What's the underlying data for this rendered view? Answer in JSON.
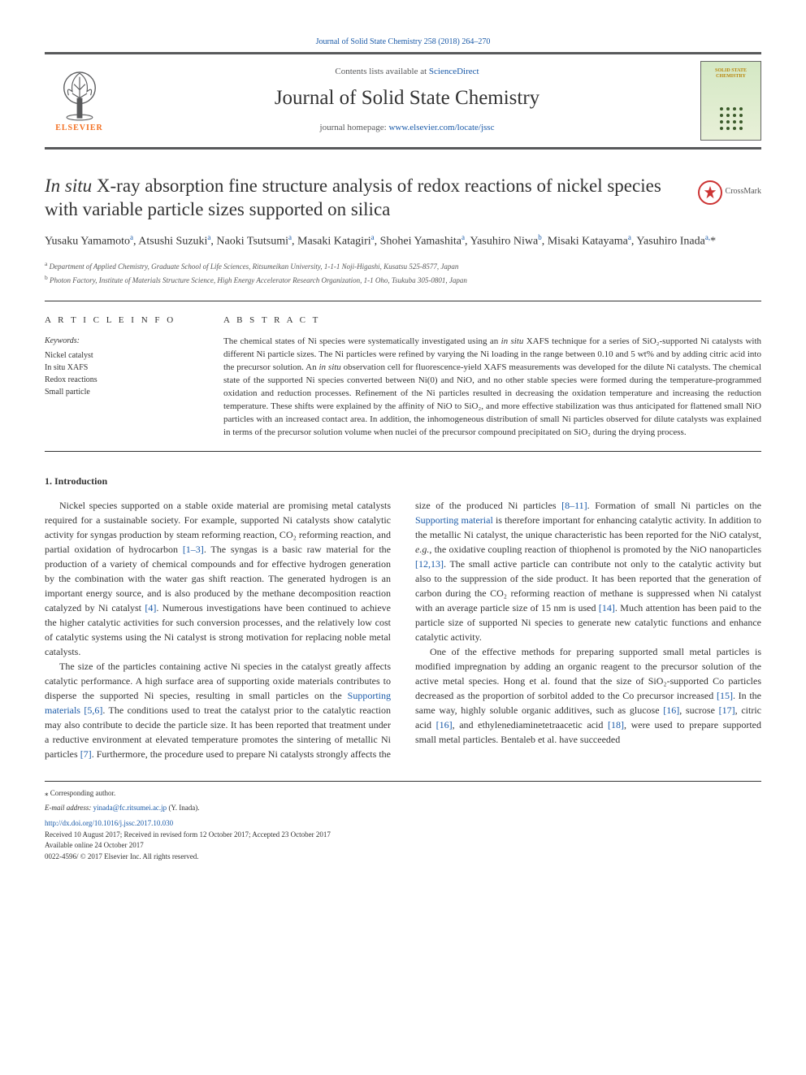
{
  "journal_ref_top": "Journal of Solid State Chemistry 258 (2018) 264–270",
  "header": {
    "contents_prefix": "Contents lists available at ",
    "contents_link": "ScienceDirect",
    "journal_name": "Journal of Solid State Chemistry",
    "homepage_prefix": "journal homepage: ",
    "homepage_url": "www.elsevier.com/locate/jssc",
    "elsevier": "ELSEVIER",
    "cover_text": "SOLID STATE CHEMISTRY"
  },
  "title_italic": "In situ",
  "title_rest": " X-ray absorption fine structure analysis of redox reactions of nickel species with variable particle sizes supported on silica",
  "crossmark": "CrossMark",
  "authors_html": "Yusaku Yamamoto<sup>a</sup>, Atsushi Suzuki<sup>a</sup>, Naoki Tsutsumi<sup>a</sup>, Masaki Katagiri<sup>a</sup>, Shohei Yamashita<sup>a</sup>, Yasuhiro Niwa<sup>b</sup>, Misaki Katayama<sup>a</sup>, Yasuhiro Inada<sup>a,</sup><span class='star'>*</span>",
  "affiliations": [
    {
      "sup": "a",
      "text": "Department of Applied Chemistry, Graduate School of Life Sciences, Ritsumeikan University, 1-1-1 Noji-Higashi, Kusatsu 525-8577, Japan"
    },
    {
      "sup": "b",
      "text": "Photon Factory, Institute of Materials Structure Science, High Energy Accelerator Research Organization, 1-1 Oho, Tsukuba 305-0801, Japan"
    }
  ],
  "labels": {
    "article_info": "A R T I C L E  I N F O",
    "abstract": "A B S T R A C T",
    "keywords": "Keywords:"
  },
  "keywords": [
    "Nickel catalyst",
    "In situ XAFS",
    "Redox reactions",
    "Small particle"
  ],
  "abstract": "The chemical states of Ni species were systematically investigated using an in situ XAFS technique for a series of SiO₂-supported Ni catalysts with different Ni particle sizes. The Ni particles were refined by varying the Ni loading in the range between 0.10 and 5 wt% and by adding citric acid into the precursor solution. An in situ observation cell for fluorescence-yield XAFS measurements was developed for the dilute Ni catalysts. The chemical state of the supported Ni species converted between Ni(0) and NiO, and no other stable species were formed during the temperature-programmed oxidation and reduction processes. Refinement of the Ni particles resulted in decreasing the oxidation temperature and increasing the reduction temperature. These shifts were explained by the affinity of NiO to SiO₂, and more effective stabilization was thus anticipated for flattened small NiO particles with an increased contact area. In addition, the inhomogeneous distribution of small Ni particles observed for dilute catalysts was explained in terms of the precursor solution volume when nuclei of the precursor compound precipitated on SiO₂ during the drying process.",
  "section1_heading": "1. Introduction",
  "para1": "Nickel species supported on a stable oxide material are promising metal catalysts required for a sustainable society. For example, supported Ni catalysts show catalytic activity for syngas production by steam reforming reaction, CO₂ reforming reaction, and partial oxidation of hydrocarbon [1–3]. The syngas is a basic raw material for the production of a variety of chemical compounds and for effective hydrogen generation by the combination with the water gas shift reaction. The generated hydrogen is an important energy source, and is also produced by the methane decomposition reaction catalyzed by Ni catalyst [4]. Numerous investigations have been continued to achieve the higher catalytic activities for such conversion processes, and the relatively low cost of catalytic systems using the Ni catalyst is strong motivation for replacing noble metal catalysts.",
  "para2": "The size of the particles containing active Ni species in the catalyst greatly affects catalytic performance. A high surface area of supporting oxide materials contributes to disperse the supported Ni species, resulting in small particles on the Supporting materials [5,6]. The conditions used to treat the catalyst prior to the catalytic reaction may also contribute to decide the particle size. It has been reported that treatment under a reductive environment at elevated temperature promotes the sintering of metallic Ni particles [7]. Furthermore, the procedure used to prepare Ni catalysts strongly affects the size of the produced Ni particles [8–11]. Formation of small Ni particles on the Supporting material is therefore important for enhancing catalytic activity. In addition to the metallic Ni catalyst, the unique characteristic has been reported for the NiO catalyst, e.g., the oxidative coupling reaction of thiophenol is promoted by the NiO nanoparticles [12,13]. The small active particle can contribute not only to the catalytic activity but also to the suppression of the side product. It has been reported that the generation of carbon during the CO₂ reforming reaction of methane is suppressed when Ni catalyst with an average particle size of 15 nm is used [14]. Much attention has been paid to the particle size of supported Ni species to generate new catalytic functions and enhance catalytic activity.",
  "para3": "One of the effective methods for preparing supported small metal particles is modified impregnation by adding an organic reagent to the precursor solution of the active metal species. Hong et al. found that the size of SiO₂-supported Co particles decreased as the proportion of sorbitol added to the Co precursor increased [15]. In the same way, highly soluble organic additives, such as glucose [16], sucrose [17], citric acid [16], and ethylenediaminetetraacetic acid [18], were used to prepare supported small metal particles. Bentaleb et al. have succeeded",
  "footer": {
    "corr_label": "⁎ Corresponding author.",
    "email_label": "E-mail address: ",
    "email": "yinada@fc.ritsumei.ac.jp",
    "email_name": " (Y. Inada).",
    "doi": "http://dx.doi.org/10.1016/j.jssc.2017.10.030",
    "dates": "Received 10 August 2017; Received in revised form 12 October 2017; Accepted 23 October 2017",
    "online": "Available online 24 October 2017",
    "copyright": "0022-4596/ © 2017 Elsevier Inc. All rights reserved."
  },
  "colors": {
    "link": "#1a5aa8",
    "orange": "#f36f21",
    "rule": "#333333",
    "text": "#333333",
    "crossmark": "#cc3333"
  }
}
